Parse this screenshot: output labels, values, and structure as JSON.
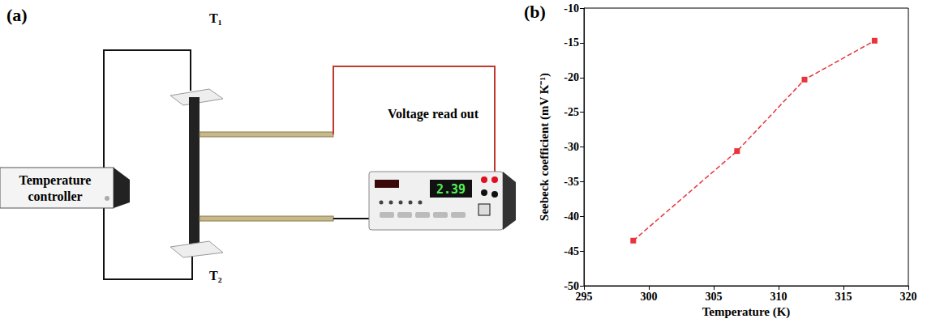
{
  "diagram": {
    "label": "(a)",
    "top_temperature": "T₁",
    "bottom_temperature": "T₂",
    "controller": "Temperature controller",
    "meter": "Voltage read out",
    "meter_reading": "2.39"
  },
  "chart_data": {
    "type": "line",
    "panel_label": "(b)",
    "xlabel": "Temperature (K)",
    "ylabel": "Seebeck coefficient (mV K⁻¹)",
    "x": [
      298.8,
      306.8,
      312.0,
      317.4
    ],
    "values": [
      -43.5,
      -30.6,
      -20.3,
      -14.7
    ],
    "color": "#e8343a",
    "marker": "square",
    "line_style": "dashed",
    "xlim": [
      295,
      320
    ],
    "xticks": [
      295,
      300,
      305,
      310,
      315,
      320
    ],
    "ylim": [
      -50,
      -10
    ],
    "yticks": [
      -50,
      -45,
      -40,
      -35,
      -30,
      -25,
      -20,
      -15,
      -10
    ],
    "grid": false
  }
}
